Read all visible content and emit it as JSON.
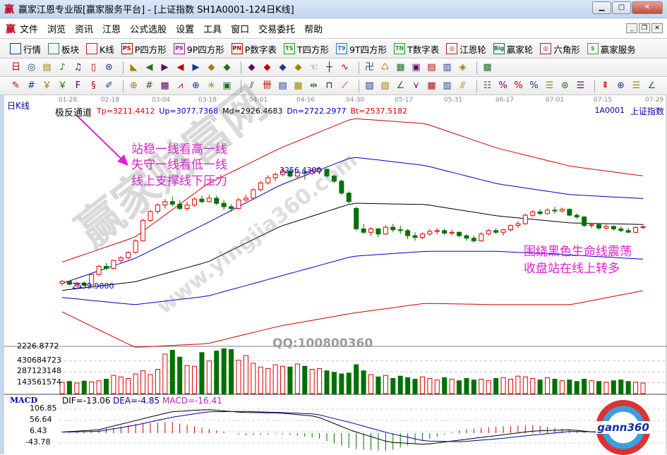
{
  "window": {
    "title": "赢家江恩专业版[赢家服务平台] - [上证指数  SH1A0001-124日K线]",
    "logo": "赢",
    "controls": [
      "minimize",
      "maximize",
      "close"
    ]
  },
  "menu": {
    "items": [
      "文件",
      "浏览",
      "资讯",
      "江恩",
      "公式选股",
      "设置",
      "工具",
      "窗口",
      "交易委托",
      "帮助"
    ]
  },
  "toolbar1": [
    {
      "icon": "quote-grid-icon",
      "badge": "",
      "label": "行情"
    },
    {
      "icon": "sector-blocks-icon",
      "badge": "",
      "label": "板块"
    },
    {
      "icon": "kline-icon",
      "badge": "",
      "label": "K线"
    },
    {
      "icon": "ps-icon",
      "badge": "PS",
      "label": "P四方形"
    },
    {
      "icon": "p9-icon",
      "badge": "P9",
      "label": "9P四方形"
    },
    {
      "icon": "pn-icon",
      "badge": "PN",
      "label": "P数字表"
    },
    {
      "icon": "ts-icon",
      "badge": "TS",
      "label": "T四方形"
    },
    {
      "icon": "t9-icon",
      "badge": "T9",
      "label": "9T四方形"
    },
    {
      "icon": "tn-icon",
      "badge": "TN",
      "label": "T数字表"
    },
    {
      "icon": "gann-wheel-icon",
      "badge": "◎",
      "label": "江恩轮"
    },
    {
      "icon": "big-wheel-icon",
      "badge": "Big",
      "label": "赢家轮"
    },
    {
      "icon": "hexagon-icon",
      "badge": "◎",
      "label": "六角形"
    },
    {
      "icon": "dollar-icon",
      "badge": "$",
      "label": "赢家服务"
    }
  ],
  "toolbar2": [
    "period-day-icon",
    "draw-icon",
    "note-icon",
    "indicator-icon",
    "indicator2-icon",
    "candle-type-icon",
    "zoom-icon",
    "color-icon",
    "first-icon",
    "last-icon",
    "left-icon",
    "right-icon",
    "diamond-left-icon",
    "diamond-right-icon",
    "diamond-up-icon",
    "diamond-cross-icon",
    "diamond-x-icon",
    "diamond-down-icon",
    "hand-icon",
    "crosshair-icon",
    "line-icon",
    "calendar-node-icon",
    "cycle-icon",
    "calendar-icon",
    "calculator-icon",
    "report-icon",
    "save-icon",
    "network-icon",
    "export-icon"
  ],
  "toolbar3": [
    "pen-icon",
    "hash-icon",
    "gold-icon",
    "gold2-icon",
    "fib-icon",
    "spiral-icon",
    "brush-icon",
    "circle-grid-icon",
    "grid-icon",
    "square-icon",
    "angle-icon",
    "target-icon",
    "star-icon",
    "box-icon",
    "parallel-icon",
    "gann-icon",
    "fan-icon",
    "table-icon",
    "arrows-icon",
    "box-line-icon",
    "fan2-icon",
    "box-fan-icon",
    "box-fan2-icon",
    "angle2-icon",
    "wave-icon",
    "grid2-icon",
    "grid3-icon",
    "lines-icon",
    "list-icon",
    "percent-red-icon",
    "percent-icon",
    "percent-lines-icon",
    "gold-circle-icon",
    "gold-line-icon",
    "pen2-icon",
    "cut-icon",
    "gold3-icon",
    "angle3-icon",
    "more-icon"
  ],
  "chart": {
    "period_label": "日K线",
    "indicator_name": "极反通道",
    "params": [
      {
        "text": "Tp=3211.4412",
        "color": "#e00000"
      },
      {
        "text": "Up=3077.7368",
        "color": "#0000c0"
      },
      {
        "text": "Md=2926.4683",
        "color": "#000000"
      },
      {
        "text": "Dn=2722.2977",
        "color": "#0000c0"
      },
      {
        "text": "Bt=2537.5182",
        "color": "#e00000"
      }
    ],
    "symbol": "1A0001",
    "symbol_name": "上证指数",
    "dates": [
      "01-28",
      "02-18",
      "03-04",
      "03-18",
      "04-01",
      "04-16",
      "04-30",
      "05-17",
      "05-31",
      "06-17",
      "07-01",
      "07-15",
      "07-29"
    ],
    "high_label": "3256.4300",
    "low_label": "2559.9800",
    "price_bottom_label": "2226.8772",
    "annotations_left": [
      "站稳一线看高一线",
      "失守一线看低一线",
      "线上支撑线下压力"
    ],
    "annotations_right": [
      "围绕黑色生命线震荡",
      "收盘站在线上转多"
    ],
    "annotation_color": "#e020d0",
    "watermark": "赢家财富网",
    "watermark_url": "www.yingjia360.com",
    "qq": "QQ:100800360",
    "logo_text": "gann360"
  },
  "chart_data": {
    "type": "candlestick",
    "ylim": [
      2226.8772,
      3581
    ],
    "ohlc": [
      [
        2580,
        2600,
        2565,
        2592
      ],
      [
        2592,
        2598,
        2570,
        2575
      ],
      [
        2575,
        2590,
        2560,
        2582
      ],
      [
        2582,
        2590,
        2562,
        2570
      ],
      [
        2570,
        2640,
        2568,
        2632
      ],
      [
        2632,
        2690,
        2625,
        2680
      ],
      [
        2680,
        2700,
        2660,
        2668
      ],
      [
        2668,
        2720,
        2662,
        2715
      ],
      [
        2715,
        2740,
        2700,
        2730
      ],
      [
        2730,
        2770,
        2720,
        2762
      ],
      [
        2762,
        2840,
        2755,
        2830
      ],
      [
        2830,
        2960,
        2825,
        2950
      ],
      [
        2950,
        3010,
        2940,
        3002
      ],
      [
        3002,
        3050,
        2990,
        3040
      ],
      [
        3040,
        3075,
        3020,
        3060
      ],
      [
        3060,
        3090,
        3030,
        3045
      ],
      [
        3045,
        3070,
        3010,
        3020
      ],
      [
        3020,
        3060,
        3005,
        3040
      ],
      [
        3040,
        3085,
        3030,
        3075
      ],
      [
        3075,
        3095,
        3050,
        3060
      ],
      [
        3060,
        3100,
        3055,
        3080
      ],
      [
        3080,
        3095,
        3040,
        3050
      ],
      [
        3050,
        3070,
        3010,
        3030
      ],
      [
        3030,
        3045,
        3000,
        3020
      ],
      [
        3020,
        3080,
        3015,
        3070
      ],
      [
        3070,
        3100,
        3060,
        3080
      ],
      [
        3080,
        3140,
        3075,
        3130
      ],
      [
        3130,
        3180,
        3120,
        3170
      ],
      [
        3170,
        3215,
        3160,
        3200
      ],
      [
        3200,
        3230,
        3180,
        3220
      ],
      [
        3220,
        3256,
        3210,
        3240
      ],
      [
        3240,
        3250,
        3200,
        3210
      ],
      [
        3210,
        3240,
        3195,
        3230
      ],
      [
        3230,
        3245,
        3190,
        3226
      ],
      [
        3226,
        3256,
        3215,
        3240
      ],
      [
        3240,
        3258,
        3220,
        3250
      ],
      [
        3250,
        3255,
        3200,
        3210
      ],
      [
        3210,
        3220,
        3170,
        3180
      ],
      [
        3180,
        3190,
        3100,
        3110
      ],
      [
        3110,
        3120,
        3050,
        3060
      ],
      [
        3020,
        3030,
        2890,
        2900
      ],
      [
        2900,
        2930,
        2870,
        2880
      ],
      [
        2880,
        2910,
        2860,
        2900
      ],
      [
        2900,
        2905,
        2850,
        2870
      ],
      [
        2870,
        2920,
        2865,
        2910
      ],
      [
        2910,
        2930,
        2880,
        2895
      ],
      [
        2895,
        2920,
        2870,
        2890
      ],
      [
        2890,
        2900,
        2840,
        2860
      ],
      [
        2860,
        2880,
        2830,
        2850
      ],
      [
        2850,
        2880,
        2840,
        2870
      ],
      [
        2870,
        2900,
        2860,
        2885
      ],
      [
        2885,
        2905,
        2870,
        2890
      ],
      [
        2890,
        2900,
        2865,
        2875
      ],
      [
        2875,
        2895,
        2860,
        2880
      ],
      [
        2880,
        2885,
        2850,
        2860
      ],
      [
        2860,
        2870,
        2830,
        2845
      ],
      [
        2845,
        2860,
        2820,
        2830
      ],
      [
        2830,
        2880,
        2825,
        2870
      ],
      [
        2870,
        2900,
        2860,
        2890
      ],
      [
        2890,
        2905,
        2870,
        2880
      ],
      [
        2880,
        2900,
        2860,
        2895
      ],
      [
        2895,
        2925,
        2885,
        2920
      ],
      [
        2920,
        2945,
        2905,
        2930
      ],
      [
        2930,
        2990,
        2925,
        2980
      ],
      [
        2980,
        3010,
        2970,
        3000
      ],
      [
        3000,
        3015,
        2980,
        2990
      ],
      [
        2990,
        3020,
        2985,
        3010
      ],
      [
        3010,
        3030,
        2990,
        3005
      ],
      [
        3005,
        3025,
        2995,
        3015
      ],
      [
        3015,
        3020,
        2975,
        2980
      ],
      [
        2980,
        2990,
        2960,
        2970
      ],
      [
        2970,
        2975,
        2910,
        2920
      ],
      [
        2920,
        2935,
        2905,
        2925
      ],
      [
        2925,
        2930,
        2895,
        2905
      ],
      [
        2905,
        2925,
        2895,
        2915
      ],
      [
        2915,
        2920,
        2890,
        2900
      ],
      [
        2900,
        2915,
        2880,
        2890
      ],
      [
        2890,
        2905,
        2875,
        2880
      ],
      [
        2880,
        2915,
        2875,
        2908
      ],
      [
        2908,
        2925,
        2900,
        2912
      ]
    ],
    "bands": {
      "Tp": [
        2705,
        2851,
        3164,
        3373,
        3548,
        3518,
        3373,
        3268,
        3211
      ],
      "Up": [
        2580,
        2726,
        2935,
        3156,
        3322,
        3272,
        3164,
        3101,
        3078
      ],
      "Md": [
        2539,
        2589,
        2705,
        2914,
        3051,
        3043,
        2976,
        2935,
        2926
      ],
      "Dn": [
        2497,
        2455,
        2505,
        2622,
        2739,
        2768,
        2768,
        2747,
        2722
      ],
      "Bt": [
        2413,
        2205,
        2226,
        2330,
        2405,
        2463,
        2455,
        2455,
        2537
      ]
    },
    "band_colors": {
      "Tp": "#d00000",
      "Up": "#0000c0",
      "Md": "#000000",
      "Dn": "#0000c0",
      "Bt": "#d00000"
    },
    "volume": {
      "ticks": [
        "430684723",
        "287123148",
        "143561574"
      ],
      "tick_values": [
        430684723,
        287123148,
        143561574
      ],
      "ymax": 603000000,
      "values": [
        150000000,
        160000000,
        140000000,
        165000000,
        155000000,
        170000000,
        190000000,
        240000000,
        220000000,
        200000000,
        260000000,
        300000000,
        250000000,
        320000000,
        520000000,
        570000000,
        480000000,
        370000000,
        360000000,
        540000000,
        430000000,
        560000000,
        590000000,
        580000000,
        440000000,
        500000000,
        400000000,
        350000000,
        330000000,
        380000000,
        360000000,
        350000000,
        390000000,
        360000000,
        320000000,
        330000000,
        300000000,
        280000000,
        260000000,
        270000000,
        380000000,
        300000000,
        250000000,
        220000000,
        240000000,
        200000000,
        230000000,
        210000000,
        190000000,
        220000000,
        200000000,
        180000000,
        210000000,
        190000000,
        170000000,
        200000000,
        180000000,
        190000000,
        170000000,
        200000000,
        210000000,
        190000000,
        230000000,
        220000000,
        200000000,
        180000000,
        210000000,
        190000000,
        170000000,
        180000000,
        160000000,
        190000000,
        170000000,
        160000000,
        150000000,
        170000000,
        180000000,
        160000000,
        150000000,
        140000000
      ]
    },
    "macd": {
      "name": "MACD",
      "dif_label": "DIF=-13.06",
      "dea_label": "DEA=-4.85",
      "macd_label": "MACD=-16.41",
      "ticks": [
        "106.85",
        "56.64",
        "6.43",
        "-43.78"
      ],
      "tick_values": [
        106.85,
        56.64,
        6.43,
        -43.78
      ],
      "dif": [
        5,
        15,
        55,
        95,
        105,
        92,
        90,
        75,
        10,
        -40,
        -50,
        -30,
        -10,
        10,
        15,
        0,
        -13.06
      ],
      "dea": [
        5,
        8,
        35,
        70,
        95,
        97,
        92,
        85,
        45,
        0,
        -35,
        -38,
        -25,
        -8,
        8,
        5,
        -4.85
      ]
    }
  }
}
